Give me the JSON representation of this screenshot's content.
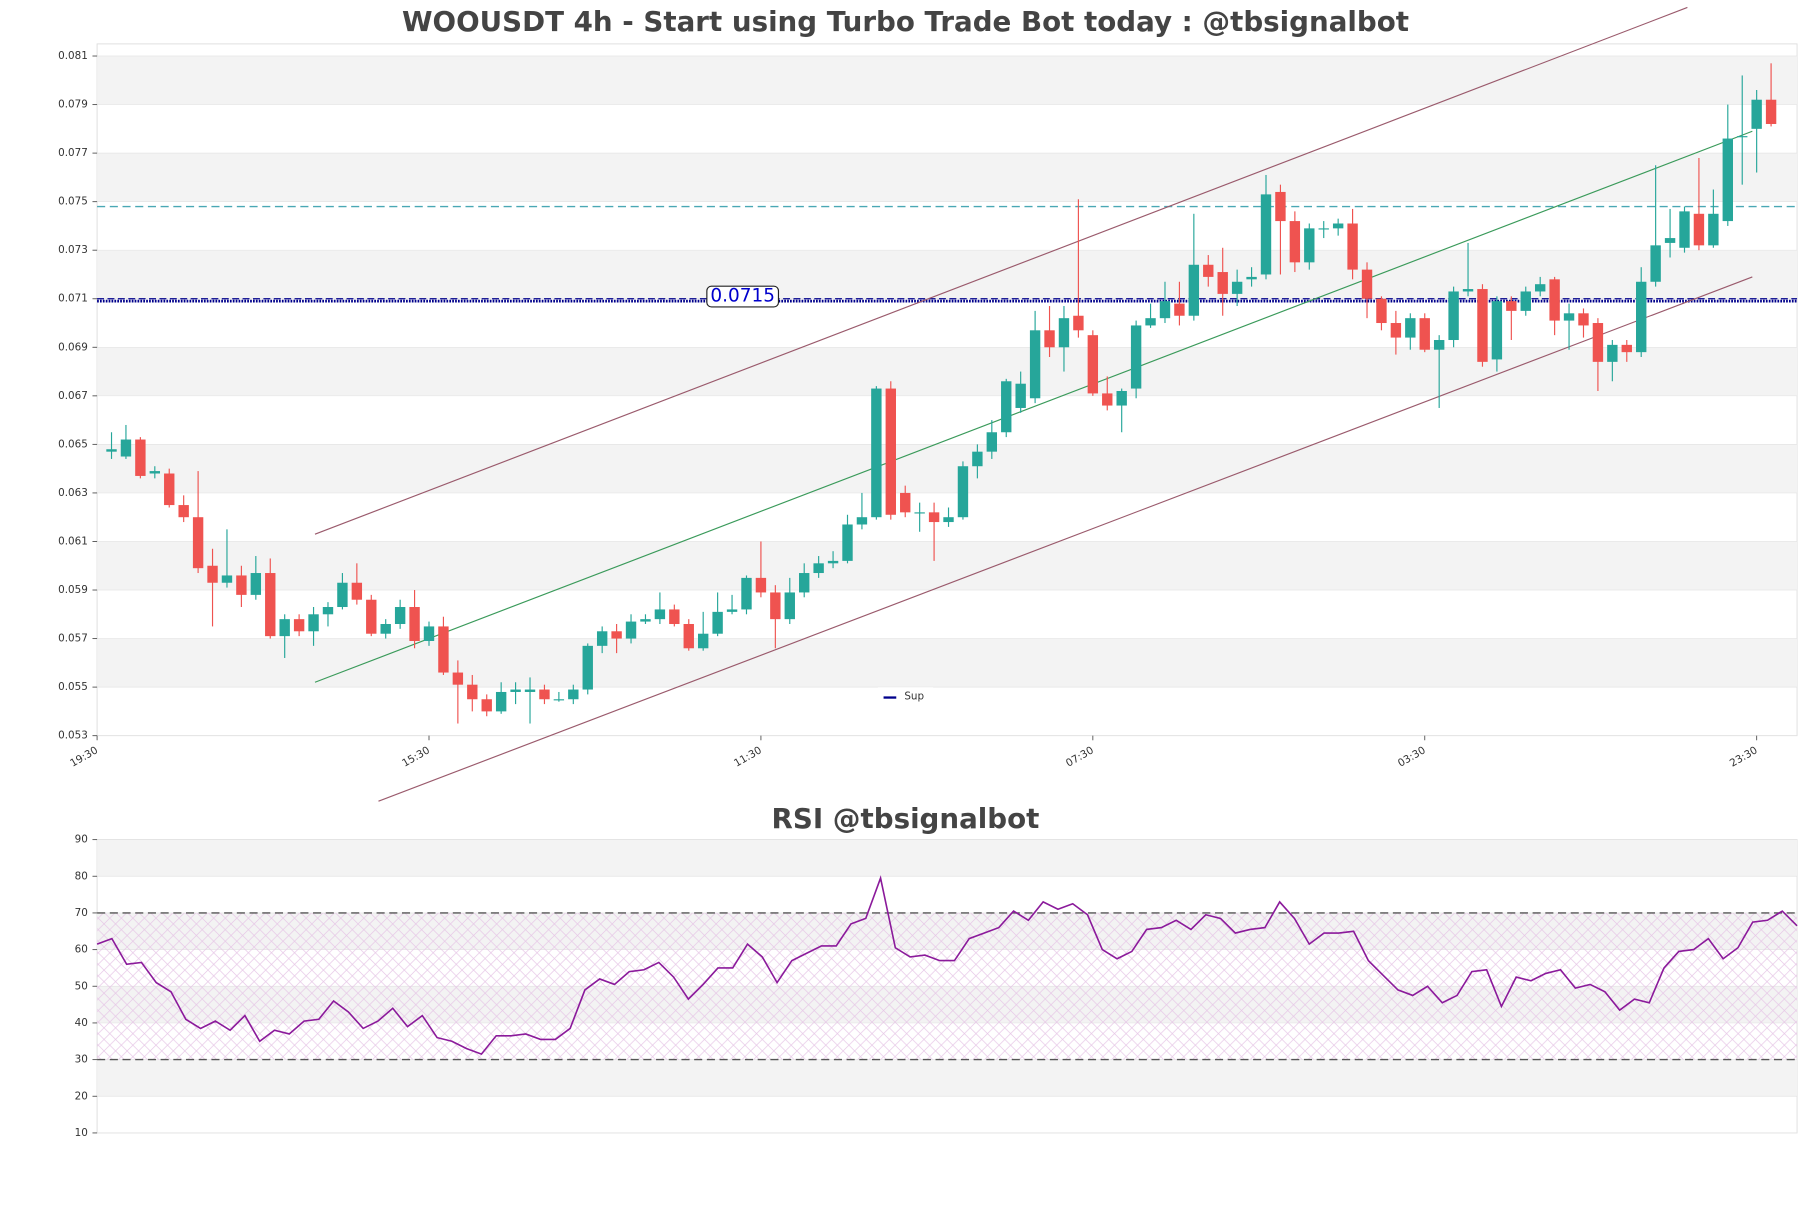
{
  "chart_data": [
    {
      "type": "candlestick",
      "title": "WOOUSDT 4h - Start using Turbo Trade Bot today : @tbsignalbot",
      "up_color": "#26a69a",
      "down_color": "#ef5350",
      "candles": [
        [
          0.0647,
          0.0655,
          0.0644,
          0.0648
        ],
        [
          0.0645,
          0.0658,
          0.0644,
          0.0652
        ],
        [
          0.0652,
          0.0653,
          0.0636,
          0.0637
        ],
        [
          0.0638,
          0.0641,
          0.0636,
          0.0639
        ],
        [
          0.0638,
          0.064,
          0.0624,
          0.0625
        ],
        [
          0.0625,
          0.0629,
          0.0618,
          0.062
        ],
        [
          0.062,
          0.0639,
          0.0597,
          0.0599
        ],
        [
          0.06,
          0.0607,
          0.0575,
          0.0593
        ],
        [
          0.0593,
          0.0615,
          0.0591,
          0.0596
        ],
        [
          0.0596,
          0.06,
          0.0583,
          0.0588
        ],
        [
          0.0588,
          0.0604,
          0.0586,
          0.0597
        ],
        [
          0.0597,
          0.0603,
          0.057,
          0.0571
        ],
        [
          0.0571,
          0.058,
          0.0562,
          0.0578
        ],
        [
          0.0578,
          0.058,
          0.0571,
          0.0573
        ],
        [
          0.0573,
          0.0583,
          0.0567,
          0.058
        ],
        [
          0.058,
          0.0585,
          0.0575,
          0.0583
        ],
        [
          0.0583,
          0.0597,
          0.0582,
          0.0593
        ],
        [
          0.0593,
          0.0601,
          0.0584,
          0.0586
        ],
        [
          0.0586,
          0.0588,
          0.0571,
          0.0572
        ],
        [
          0.0572,
          0.0578,
          0.057,
          0.0576
        ],
        [
          0.0576,
          0.0586,
          0.0574,
          0.0583
        ],
        [
          0.0583,
          0.059,
          0.0566,
          0.0569
        ],
        [
          0.0569,
          0.0577,
          0.0567,
          0.0575
        ],
        [
          0.0575,
          0.0579,
          0.0555,
          0.0556
        ],
        [
          0.0556,
          0.0561,
          0.0535,
          0.0551
        ],
        [
          0.0551,
          0.0555,
          0.054,
          0.0545
        ],
        [
          0.0545,
          0.0547,
          0.0538,
          0.054
        ],
        [
          0.054,
          0.0552,
          0.0539,
          0.0548
        ],
        [
          0.0548,
          0.0552,
          0.0543,
          0.0549
        ],
        [
          0.0548,
          0.0554,
          0.0535,
          0.0549
        ],
        [
          0.0549,
          0.0551,
          0.0543,
          0.0545
        ],
        [
          0.0545,
          0.0548,
          0.0544,
          0.0545
        ],
        [
          0.0545,
          0.0551,
          0.0543,
          0.0549
        ],
        [
          0.0549,
          0.0568,
          0.0547,
          0.0567
        ],
        [
          0.0567,
          0.0575,
          0.0564,
          0.0573
        ],
        [
          0.0573,
          0.0576,
          0.0564,
          0.057
        ],
        [
          0.057,
          0.058,
          0.0568,
          0.0577
        ],
        [
          0.0577,
          0.058,
          0.0576,
          0.0578
        ],
        [
          0.0578,
          0.0589,
          0.0576,
          0.0582
        ],
        [
          0.0582,
          0.0584,
          0.0575,
          0.0576
        ],
        [
          0.0576,
          0.0578,
          0.0565,
          0.0566
        ],
        [
          0.0566,
          0.0581,
          0.0565,
          0.0572
        ],
        [
          0.0572,
          0.0589,
          0.0571,
          0.0581
        ],
        [
          0.0581,
          0.0588,
          0.058,
          0.0582
        ],
        [
          0.0582,
          0.0596,
          0.058,
          0.0595
        ],
        [
          0.0595,
          0.061,
          0.0587,
          0.0589
        ],
        [
          0.0589,
          0.0592,
          0.0566,
          0.0578
        ],
        [
          0.0578,
          0.0595,
          0.0576,
          0.0589
        ],
        [
          0.0589,
          0.0601,
          0.0587,
          0.0597
        ],
        [
          0.0597,
          0.0604,
          0.0595,
          0.0601
        ],
        [
          0.0601,
          0.0606,
          0.0599,
          0.0602
        ],
        [
          0.0602,
          0.0621,
          0.0601,
          0.0617
        ],
        [
          0.0617,
          0.063,
          0.0615,
          0.062
        ],
        [
          0.062,
          0.0674,
          0.0619,
          0.0673
        ],
        [
          0.0673,
          0.0676,
          0.0619,
          0.0621
        ],
        [
          0.063,
          0.0633,
          0.062,
          0.0622
        ],
        [
          0.0622,
          0.0626,
          0.0614,
          0.0622
        ],
        [
          0.0622,
          0.0626,
          0.0602,
          0.0618
        ],
        [
          0.0618,
          0.0624,
          0.0616,
          0.062
        ],
        [
          0.062,
          0.0643,
          0.0619,
          0.0641
        ],
        [
          0.0641,
          0.065,
          0.0636,
          0.0647
        ],
        [
          0.0647,
          0.066,
          0.0644,
          0.0655
        ],
        [
          0.0655,
          0.0677,
          0.0653,
          0.0676
        ],
        [
          0.0665,
          0.068,
          0.0663,
          0.0675
        ],
        [
          0.0669,
          0.0705,
          0.0667,
          0.0697
        ],
        [
          0.0697,
          0.0707,
          0.0686,
          0.069
        ],
        [
          0.069,
          0.0707,
          0.068,
          0.0702
        ],
        [
          0.0703,
          0.0751,
          0.0694,
          0.0697
        ],
        [
          0.0695,
          0.0697,
          0.067,
          0.0671
        ],
        [
          0.0671,
          0.0678,
          0.0664,
          0.0666
        ],
        [
          0.0666,
          0.0673,
          0.0655,
          0.0672
        ],
        [
          0.0673,
          0.0701,
          0.0669,
          0.0699
        ],
        [
          0.0699,
          0.0708,
          0.0698,
          0.0702
        ],
        [
          0.0702,
          0.0717,
          0.07,
          0.0709
        ],
        [
          0.0708,
          0.0717,
          0.0699,
          0.0703
        ],
        [
          0.0703,
          0.0745,
          0.0701,
          0.0724
        ],
        [
          0.0724,
          0.0728,
          0.0715,
          0.0719
        ],
        [
          0.0721,
          0.0731,
          0.0703,
          0.0712
        ],
        [
          0.0712,
          0.0722,
          0.0707,
          0.0717
        ],
        [
          0.0718,
          0.0723,
          0.0715,
          0.0719
        ],
        [
          0.072,
          0.0761,
          0.0718,
          0.0753
        ],
        [
          0.0754,
          0.0757,
          0.072,
          0.0742
        ],
        [
          0.0742,
          0.0746,
          0.0721,
          0.0725
        ],
        [
          0.0725,
          0.0741,
          0.0722,
          0.0739
        ],
        [
          0.0739,
          0.0742,
          0.0735,
          0.0739
        ],
        [
          0.0739,
          0.0743,
          0.0736,
          0.0741
        ],
        [
          0.0741,
          0.0747,
          0.0718,
          0.0722
        ],
        [
          0.0722,
          0.0725,
          0.0702,
          0.071
        ],
        [
          0.071,
          0.0711,
          0.0697,
          0.07
        ],
        [
          0.07,
          0.0705,
          0.0687,
          0.0694
        ],
        [
          0.0694,
          0.0704,
          0.0689,
          0.0702
        ],
        [
          0.0702,
          0.0704,
          0.0688,
          0.0689
        ],
        [
          0.0689,
          0.0695,
          0.0665,
          0.0693
        ],
        [
          0.0693,
          0.0715,
          0.069,
          0.0713
        ],
        [
          0.0713,
          0.0733,
          0.0711,
          0.0714
        ],
        [
          0.0714,
          0.0716,
          0.0682,
          0.0684
        ],
        [
          0.0685,
          0.0711,
          0.068,
          0.0709
        ],
        [
          0.0709,
          0.0711,
          0.0693,
          0.0705
        ],
        [
          0.0705,
          0.0715,
          0.0703,
          0.0713
        ],
        [
          0.0713,
          0.0719,
          0.0711,
          0.0716
        ],
        [
          0.0718,
          0.0719,
          0.0695,
          0.0701
        ],
        [
          0.0701,
          0.0708,
          0.0689,
          0.0704
        ],
        [
          0.0704,
          0.0706,
          0.0694,
          0.0699
        ],
        [
          0.07,
          0.0702,
          0.0672,
          0.0684
        ],
        [
          0.0684,
          0.0693,
          0.0676,
          0.0691
        ],
        [
          0.0691,
          0.0693,
          0.0684,
          0.0688
        ],
        [
          0.0688,
          0.0723,
          0.0686,
          0.0717
        ],
        [
          0.0717,
          0.0765,
          0.0715,
          0.0732
        ],
        [
          0.0733,
          0.0747,
          0.0727,
          0.0735
        ],
        [
          0.0731,
          0.0748,
          0.0729,
          0.0746
        ],
        [
          0.0745,
          0.0768,
          0.073,
          0.0732
        ],
        [
          0.0732,
          0.0755,
          0.0731,
          0.0745
        ],
        [
          0.0742,
          0.079,
          0.074,
          0.0776
        ],
        [
          0.0777,
          0.0802,
          0.0757,
          0.0777
        ],
        [
          0.078,
          0.0796,
          0.0762,
          0.0792
        ],
        [
          0.0792,
          0.0807,
          0.0781,
          0.0782
        ]
      ],
      "xticks": [
        {
          "value": -1,
          "label": "19:30"
        },
        {
          "value": 22,
          "label": "15:30"
        },
        {
          "value": 45,
          "label": "11:30"
        },
        {
          "value": 68,
          "label": "07:30"
        },
        {
          "value": 91,
          "label": "03:30"
        },
        {
          "value": 114,
          "label": "23:30"
        }
      ],
      "xlim": [
        -1,
        116.8
      ],
      "ylim": [
        0.053,
        0.0815
      ],
      "yticks": [
        0.053,
        0.055,
        0.057,
        0.059,
        0.061,
        0.063,
        0.065,
        0.067,
        0.069,
        0.071,
        0.073,
        0.075,
        0.077,
        0.079,
        0.081
      ],
      "grid_bands": true,
      "resistance": {
        "value": 0.0748,
        "color": "#4aa8b4"
      },
      "support": {
        "name": "Sup",
        "values": [
          0.0709,
          0.071
        ],
        "color": "#00008b"
      },
      "price_label": 0.0715,
      "channel": [
        {
          "x": [
            14.1,
            109.2
          ],
          "y": [
            0.0613,
            0.083
          ],
          "color": "#9a5a6c"
        },
        {
          "x": [
            14.1,
            113.7
          ],
          "y": [
            0.0552,
            0.0779
          ],
          "color": "#3a9a5a"
        },
        {
          "x": [
            18.5,
            113.7
          ],
          "y": [
            0.0503,
            0.0719
          ],
          "color": "#9a5a6c"
        }
      ]
    },
    {
      "type": "line",
      "title": "RSI @tbsignalbot",
      "color": "#8b1a9b",
      "values": [
        61.5,
        63,
        56,
        56.5,
        51,
        48.5,
        41,
        38.5,
        40.5,
        38,
        42,
        35,
        38,
        37,
        40.5,
        41,
        46,
        43,
        38.5,
        40.5,
        44,
        39,
        42,
        36,
        35,
        33,
        31.5,
        36.5,
        36.5,
        37,
        35.5,
        35.5,
        38.5,
        49,
        52,
        50.5,
        54,
        54.5,
        56.5,
        52.5,
        46.5,
        50.5,
        55,
        55,
        61.5,
        58,
        51,
        57,
        59,
        61,
        61,
        67,
        68.5,
        79.5,
        60.5,
        58,
        58.5,
        57,
        57,
        63,
        64.5,
        66,
        70.5,
        68,
        73,
        71,
        72.5,
        69.5,
        60,
        57.5,
        59.5,
        65.5,
        66,
        68,
        65.5,
        69.5,
        68.5,
        64.5,
        65.5,
        66,
        73,
        68.5,
        61.5,
        64.5,
        64.5,
        65,
        57,
        53,
        49,
        47.5,
        50,
        45.5,
        47.5,
        54,
        54.5,
        44.5,
        52.5,
        51.5,
        53.5,
        54.5,
        49.5,
        50.5,
        48.5,
        43.5,
        46.5,
        45.5,
        55,
        59.5,
        60,
        63,
        57.5,
        60.5,
        67.5,
        68,
        70.5,
        66.5
      ],
      "ylim": [
        10,
        90
      ],
      "yticks": [
        10,
        20,
        30,
        40,
        50,
        60,
        70,
        80,
        90
      ],
      "levels": [
        70,
        30
      ],
      "grid_bands": true
    }
  ]
}
